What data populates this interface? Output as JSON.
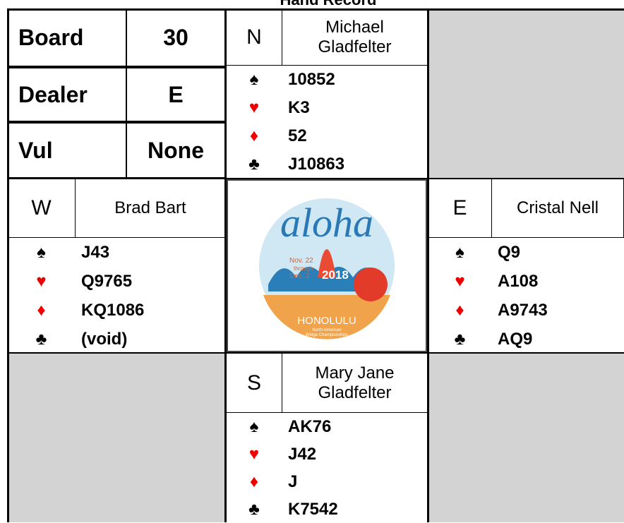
{
  "title": "Hand Record",
  "board": {
    "label": "Board",
    "value": "30"
  },
  "dealer": {
    "label": "Dealer",
    "value": "E"
  },
  "vul": {
    "label": "Vul",
    "value": "None"
  },
  "suits": [
    "♠",
    "♥",
    "♦",
    "♣"
  ],
  "hands": {
    "north": {
      "seat": "N",
      "player": "Michael Gladfelter",
      "cards": [
        "10852",
        "K3",
        "52",
        "J10863"
      ]
    },
    "west": {
      "seat": "W",
      "player": "Brad Bart",
      "cards": [
        "J43",
        "Q9765",
        "KQ1086",
        "(void)"
      ]
    },
    "east": {
      "seat": "E",
      "player": "Cristal Nell",
      "cards": [
        "Q9",
        "A108",
        "A9743",
        "AQ9"
      ]
    },
    "south": {
      "seat": "S",
      "player": "Mary Jane Gladfelter",
      "cards": [
        "AK76",
        "J42",
        "J",
        "K7542"
      ]
    }
  },
  "logo": {
    "script": "aloha",
    "dates": [
      "Nov. 22",
      "through",
      "Dec. 2"
    ],
    "year": "2018",
    "city": "HONOLULU",
    "event": [
      "North American",
      "Bridge Championships"
    ]
  }
}
